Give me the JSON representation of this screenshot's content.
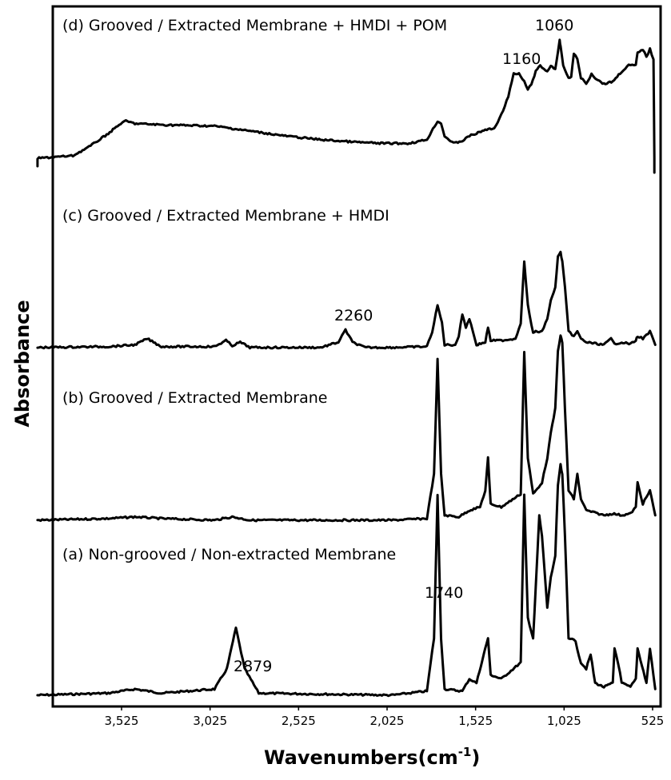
{
  "chart_data": {
    "type": "line",
    "xlabel": "Wavenumbers",
    "xlabel_unit_base": "(cm",
    "xlabel_unit_sup": "-1",
    "xlabel_unit_close": ")",
    "ylabel": "Absorbance",
    "x_reversed": true,
    "xlim": [
      4000,
      500
    ],
    "xticks": [
      "3,525",
      "3,025",
      "2,525",
      "2,025",
      "1,525",
      "1,025",
      "525"
    ],
    "xtick_values": [
      3525,
      3025,
      2525,
      2025,
      1525,
      1025,
      525
    ],
    "grid": false,
    "y_ticks_shown": false,
    "series": [
      {
        "label": "(a) Non-grooved / Non-extracted Membrane",
        "points": [
          [
            4000,
            0.02
          ],
          [
            3600,
            0.03
          ],
          [
            3450,
            0.05
          ],
          [
            3300,
            0.03
          ],
          [
            3000,
            0.05
          ],
          [
            2930,
            0.15
          ],
          [
            2879,
            0.35
          ],
          [
            2830,
            0.15
          ],
          [
            2750,
            0.03
          ],
          [
            2000,
            0.02
          ],
          [
            1800,
            0.04
          ],
          [
            1760,
            0.3
          ],
          [
            1740,
            1.0
          ],
          [
            1720,
            0.3
          ],
          [
            1700,
            0.05
          ],
          [
            1600,
            0.04
          ],
          [
            1560,
            0.1
          ],
          [
            1520,
            0.08
          ],
          [
            1470,
            0.25
          ],
          [
            1455,
            0.3
          ],
          [
            1440,
            0.12
          ],
          [
            1380,
            0.1
          ],
          [
            1270,
            0.18
          ],
          [
            1250,
            1.0
          ],
          [
            1230,
            0.4
          ],
          [
            1200,
            0.3
          ],
          [
            1185,
            0.55
          ],
          [
            1165,
            0.9
          ],
          [
            1150,
            0.8
          ],
          [
            1120,
            0.45
          ],
          [
            1100,
            0.6
          ],
          [
            1075,
            0.7
          ],
          [
            1060,
            1.05
          ],
          [
            1045,
            1.15
          ],
          [
            1035,
            1.1
          ],
          [
            1020,
            0.8
          ],
          [
            1000,
            0.3
          ],
          [
            980,
            0.3
          ],
          [
            960,
            0.28
          ],
          [
            930,
            0.18
          ],
          [
            900,
            0.15
          ],
          [
            875,
            0.22
          ],
          [
            850,
            0.08
          ],
          [
            800,
            0.06
          ],
          [
            750,
            0.08
          ],
          [
            740,
            0.25
          ],
          [
            720,
            0.18
          ],
          [
            700,
            0.08
          ],
          [
            650,
            0.06
          ],
          [
            620,
            0.1
          ],
          [
            610,
            0.25
          ],
          [
            560,
            0.08
          ],
          [
            540,
            0.25
          ],
          [
            510,
            0.05
          ]
        ]
      },
      {
        "label": "(b) Grooved / Extracted Membrane",
        "points": [
          [
            4000,
            0.02
          ],
          [
            3600,
            0.03
          ],
          [
            3450,
            0.04
          ],
          [
            3300,
            0.03
          ],
          [
            3000,
            0.02
          ],
          [
            2900,
            0.04
          ],
          [
            2800,
            0.02
          ],
          [
            2000,
            0.02
          ],
          [
            1800,
            0.03
          ],
          [
            1760,
            0.3
          ],
          [
            1740,
            1.0
          ],
          [
            1720,
            0.3
          ],
          [
            1700,
            0.05
          ],
          [
            1620,
            0.04
          ],
          [
            1560,
            0.08
          ],
          [
            1500,
            0.1
          ],
          [
            1470,
            0.2
          ],
          [
            1455,
            0.4
          ],
          [
            1440,
            0.12
          ],
          [
            1380,
            0.1
          ],
          [
            1270,
            0.18
          ],
          [
            1250,
            1.05
          ],
          [
            1230,
            0.4
          ],
          [
            1200,
            0.18
          ],
          [
            1185,
            0.2
          ],
          [
            1150,
            0.25
          ],
          [
            1120,
            0.4
          ],
          [
            1100,
            0.55
          ],
          [
            1075,
            0.7
          ],
          [
            1060,
            1.05
          ],
          [
            1045,
            1.15
          ],
          [
            1035,
            1.1
          ],
          [
            1020,
            0.7
          ],
          [
            1000,
            0.2
          ],
          [
            970,
            0.15
          ],
          [
            950,
            0.3
          ],
          [
            930,
            0.15
          ],
          [
            900,
            0.08
          ],
          [
            800,
            0.05
          ],
          [
            750,
            0.06
          ],
          [
            700,
            0.05
          ],
          [
            650,
            0.06
          ],
          [
            620,
            0.1
          ],
          [
            610,
            0.25
          ],
          [
            580,
            0.12
          ],
          [
            540,
            0.2
          ],
          [
            510,
            0.05
          ]
        ]
      },
      {
        "label": "(c) Grooved / Extracted Membrane + HMDI",
        "points": [
          [
            4000,
            0.02
          ],
          [
            3600,
            0.03
          ],
          [
            3450,
            0.05
          ],
          [
            3380,
            0.12
          ],
          [
            3300,
            0.03
          ],
          [
            3000,
            0.03
          ],
          [
            2935,
            0.1
          ],
          [
            2900,
            0.04
          ],
          [
            2855,
            0.08
          ],
          [
            2800,
            0.02
          ],
          [
            2400,
            0.02
          ],
          [
            2300,
            0.08
          ],
          [
            2260,
            0.22
          ],
          [
            2220,
            0.08
          ],
          [
            2150,
            0.02
          ],
          [
            2000,
            0.02
          ],
          [
            1800,
            0.03
          ],
          [
            1770,
            0.2
          ],
          [
            1740,
            0.5
          ],
          [
            1715,
            0.3
          ],
          [
            1700,
            0.05
          ],
          [
            1640,
            0.05
          ],
          [
            1620,
            0.15
          ],
          [
            1600,
            0.4
          ],
          [
            1580,
            0.25
          ],
          [
            1560,
            0.35
          ],
          [
            1540,
            0.2
          ],
          [
            1520,
            0.05
          ],
          [
            1470,
            0.08
          ],
          [
            1455,
            0.25
          ],
          [
            1440,
            0.1
          ],
          [
            1380,
            0.1
          ],
          [
            1300,
            0.12
          ],
          [
            1270,
            0.3
          ],
          [
            1250,
            1.0
          ],
          [
            1230,
            0.5
          ],
          [
            1200,
            0.18
          ],
          [
            1185,
            0.2
          ],
          [
            1150,
            0.2
          ],
          [
            1120,
            0.35
          ],
          [
            1100,
            0.55
          ],
          [
            1075,
            0.7
          ],
          [
            1060,
            1.05
          ],
          [
            1045,
            1.1
          ],
          [
            1035,
            1.0
          ],
          [
            1020,
            0.7
          ],
          [
            1000,
            0.2
          ],
          [
            970,
            0.15
          ],
          [
            950,
            0.2
          ],
          [
            930,
            0.12
          ],
          [
            900,
            0.08
          ],
          [
            800,
            0.05
          ],
          [
            760,
            0.12
          ],
          [
            740,
            0.06
          ],
          [
            700,
            0.08
          ],
          [
            650,
            0.06
          ],
          [
            620,
            0.1
          ],
          [
            610,
            0.15
          ],
          [
            580,
            0.12
          ],
          [
            540,
            0.2
          ],
          [
            510,
            0.05
          ]
        ]
      },
      {
        "label": "(d) Grooved / Extracted Membrane + HMDI + POM",
        "points": [
          [
            4000,
            0.0
          ],
          [
            3800,
            0.02
          ],
          [
            3700,
            0.1
          ],
          [
            3600,
            0.2
          ],
          [
            3530,
            0.28
          ],
          [
            3500,
            0.3
          ],
          [
            3450,
            0.28
          ],
          [
            3300,
            0.27
          ],
          [
            3000,
            0.26
          ],
          [
            2800,
            0.22
          ],
          [
            2600,
            0.18
          ],
          [
            2400,
            0.15
          ],
          [
            2200,
            0.13
          ],
          [
            2050,
            0.12
          ],
          [
            1900,
            0.12
          ],
          [
            1800,
            0.15
          ],
          [
            1740,
            0.3
          ],
          [
            1720,
            0.28
          ],
          [
            1700,
            0.18
          ],
          [
            1650,
            0.12
          ],
          [
            1600,
            0.14
          ],
          [
            1560,
            0.18
          ],
          [
            1520,
            0.2
          ],
          [
            1470,
            0.23
          ],
          [
            1420,
            0.24
          ],
          [
            1380,
            0.35
          ],
          [
            1340,
            0.5
          ],
          [
            1310,
            0.68
          ],
          [
            1280,
            0.68
          ],
          [
            1250,
            0.62
          ],
          [
            1230,
            0.55
          ],
          [
            1210,
            0.6
          ],
          [
            1185,
            0.7
          ],
          [
            1160,
            0.75
          ],
          [
            1140,
            0.72
          ],
          [
            1120,
            0.7
          ],
          [
            1100,
            0.75
          ],
          [
            1075,
            0.72
          ],
          [
            1060,
            0.85
          ],
          [
            1050,
            0.95
          ],
          [
            1045,
            0.9
          ],
          [
            1030,
            0.75
          ],
          [
            1000,
            0.65
          ],
          [
            985,
            0.65
          ],
          [
            970,
            0.85
          ],
          [
            950,
            0.8
          ],
          [
            930,
            0.65
          ],
          [
            900,
            0.6
          ],
          [
            870,
            0.68
          ],
          [
            850,
            0.65
          ],
          [
            800,
            0.6
          ],
          [
            750,
            0.62
          ],
          [
            700,
            0.7
          ],
          [
            660,
            0.75
          ],
          [
            620,
            0.75
          ],
          [
            610,
            0.85
          ],
          [
            580,
            0.88
          ],
          [
            560,
            0.82
          ],
          [
            540,
            0.88
          ],
          [
            520,
            0.8
          ],
          [
            515,
            0.0
          ]
        ]
      }
    ],
    "annotations": [
      {
        "text": "2879",
        "x": 2879,
        "series": 0
      },
      {
        "text": "1740",
        "x": 1740,
        "series": 0
      },
      {
        "text": "2260",
        "x": 2260,
        "series": 2
      },
      {
        "text": "1160",
        "x": 1160,
        "series": 3
      },
      {
        "text": "1060",
        "x": 1060,
        "series": 3
      }
    ]
  }
}
